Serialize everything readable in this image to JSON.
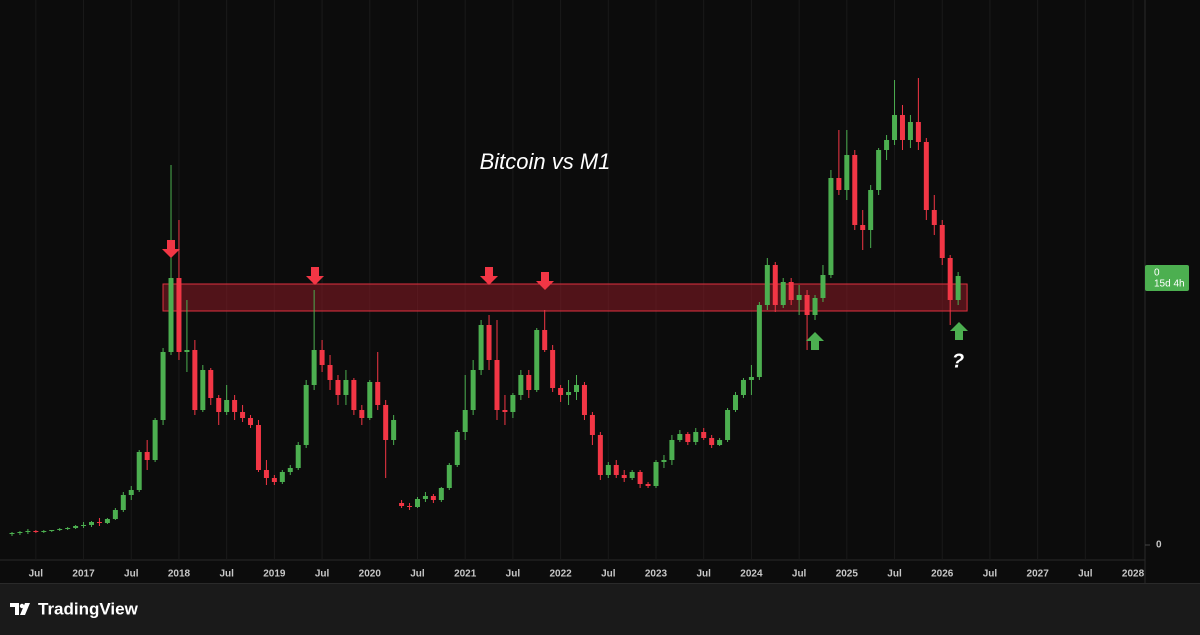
{
  "chart_data": {
    "type": "candlestick",
    "title": "Bitcoin vs M1",
    "x": [
      "2016-04",
      "2016-05",
      "2016-06",
      "2016-07",
      "2016-08",
      "2016-09",
      "2016-10",
      "2016-11",
      "2016-12",
      "2017-01",
      "2017-02",
      "2017-03",
      "2017-04",
      "2017-05",
      "2017-06",
      "2017-07",
      "2017-08",
      "2017-09",
      "2017-10",
      "2017-11",
      "2017-12",
      "2018-01",
      "2018-02",
      "2018-03",
      "2018-04",
      "2018-05",
      "2018-06",
      "2018-07",
      "2018-08",
      "2018-09",
      "2018-10",
      "2018-11",
      "2018-12",
      "2019-01",
      "2019-02",
      "2019-03",
      "2019-04",
      "2019-05",
      "2019-06",
      "2019-07",
      "2019-08",
      "2019-09",
      "2019-10",
      "2019-11",
      "2019-12",
      "2020-01",
      "2020-02",
      "2020-03",
      "2020-04",
      "2020-05",
      "2020-06",
      "2020-07",
      "2020-08",
      "2020-09",
      "2020-10",
      "2020-11",
      "2020-12",
      "2021-01",
      "2021-02",
      "2021-03",
      "2021-04",
      "2021-05",
      "2021-06",
      "2021-07",
      "2021-08",
      "2021-09",
      "2021-10",
      "2021-11",
      "2021-12",
      "2022-01",
      "2022-02",
      "2022-03",
      "2022-04",
      "2022-05",
      "2022-06",
      "2022-07",
      "2022-08",
      "2022-09",
      "2022-10",
      "2022-11",
      "2022-12",
      "2023-01",
      "2023-02",
      "2023-03",
      "2023-04",
      "2023-05",
      "2023-06",
      "2023-07",
      "2023-08",
      "2023-09",
      "2023-10",
      "2023-11",
      "2023-12",
      "2024-01",
      "2024-02",
      "2024-03",
      "2024-04",
      "2024-05",
      "2024-06",
      "2024-07",
      "2024-08",
      "2024-09",
      "2024-10",
      "2024-11",
      "2024-12",
      "2025-01",
      "2025-02",
      "2025-03",
      "2025-04",
      "2025-05",
      "2025-06",
      "2025-07",
      "2025-08",
      "2025-09",
      "2025-10",
      "2025-11",
      "2025-12",
      "2026-01",
      "2026-02",
      "2026-03"
    ],
    "open": [
      11,
      12,
      13,
      14,
      13,
      14,
      15,
      16,
      17,
      19,
      20,
      23,
      22,
      26,
      35,
      50,
      55,
      93,
      85,
      125,
      193,
      267,
      193,
      195,
      135,
      175,
      147,
      133,
      145,
      133,
      127,
      120,
      75,
      67,
      63,
      73,
      77,
      100,
      160,
      195,
      180,
      165,
      150,
      165,
      135,
      127,
      163,
      140,
      105,
      42,
      39,
      38,
      46,
      49,
      45,
      57,
      80,
      113,
      135,
      175,
      220,
      185,
      135,
      133,
      150,
      170,
      155,
      215,
      195,
      157,
      150,
      153,
      160,
      130,
      110,
      70,
      80,
      70,
      67,
      73,
      61,
      59,
      83,
      85,
      105,
      111,
      103,
      113,
      107,
      100,
      105,
      135,
      150,
      165,
      168,
      240,
      280,
      240,
      263,
      245,
      250,
      230,
      247,
      270,
      367,
      355,
      390,
      320,
      315,
      355,
      395,
      405,
      430,
      405,
      423,
      403,
      335,
      320,
      287,
      245
    ],
    "close": [
      12,
      13,
      14,
      13,
      14,
      15,
      16,
      17,
      19,
      20,
      23,
      22,
      26,
      35,
      50,
      55,
      93,
      85,
      125,
      193,
      267,
      193,
      195,
      135,
      175,
      147,
      133,
      145,
      133,
      127,
      120,
      75,
      67,
      63,
      73,
      77,
      100,
      160,
      195,
      180,
      165,
      150,
      165,
      135,
      127,
      163,
      140,
      105,
      125,
      39,
      38,
      46,
      49,
      45,
      57,
      80,
      113,
      135,
      175,
      220,
      185,
      135,
      133,
      150,
      170,
      155,
      215,
      195,
      157,
      150,
      153,
      160,
      130,
      110,
      70,
      80,
      70,
      67,
      73,
      61,
      59,
      83,
      85,
      105,
      111,
      103,
      113,
      107,
      100,
      105,
      135,
      150,
      165,
      168,
      240,
      280,
      240,
      263,
      245,
      250,
      230,
      247,
      270,
      367,
      355,
      390,
      320,
      315,
      355,
      395,
      405,
      430,
      405,
      423,
      403,
      335,
      320,
      287,
      245,
      269
    ],
    "high": [
      13,
      14,
      16,
      15,
      15,
      15,
      17,
      18,
      20,
      23,
      24,
      27,
      27,
      37,
      53,
      59,
      95,
      105,
      127,
      197,
      380,
      325,
      245,
      205,
      180,
      177,
      150,
      160,
      150,
      140,
      130,
      125,
      85,
      70,
      75,
      80,
      103,
      165,
      255,
      205,
      190,
      170,
      175,
      167,
      140,
      165,
      193,
      145,
      130,
      45,
      42,
      48,
      53,
      51,
      58,
      82,
      115,
      170,
      185,
      225,
      230,
      225,
      150,
      152,
      175,
      175,
      217,
      235,
      200,
      160,
      165,
      170,
      163,
      133,
      113,
      83,
      85,
      75,
      75,
      75,
      63,
      85,
      90,
      110,
      115,
      113,
      117,
      117,
      110,
      107,
      137,
      153,
      167,
      180,
      243,
      287,
      283,
      267,
      267,
      260,
      255,
      250,
      280,
      375,
      415,
      415,
      395,
      335,
      360,
      397,
      410,
      465,
      440,
      430,
      467,
      407,
      350,
      325,
      290,
      273
    ],
    "low": [
      9,
      10,
      11,
      12,
      12,
      13,
      14,
      15,
      16,
      17,
      18,
      19,
      21,
      25,
      33,
      45,
      53,
      75,
      83,
      120,
      190,
      185,
      173,
      130,
      133,
      140,
      120,
      130,
      125,
      123,
      117,
      73,
      60,
      60,
      61,
      70,
      75,
      97,
      155,
      173,
      155,
      140,
      140,
      130,
      120,
      125,
      135,
      67,
      100,
      37,
      35,
      37,
      43,
      42,
      43,
      55,
      78,
      105,
      130,
      170,
      175,
      125,
      120,
      127,
      145,
      147,
      153,
      193,
      153,
      143,
      140,
      145,
      125,
      100,
      65,
      67,
      67,
      63,
      65,
      57,
      57,
      57,
      77,
      80,
      103,
      100,
      100,
      105,
      97,
      99,
      103,
      133,
      147,
      150,
      165,
      235,
      233,
      237,
      240,
      230,
      195,
      225,
      243,
      267,
      350,
      345,
      315,
      295,
      297,
      350,
      385,
      400,
      395,
      397,
      395,
      325,
      310,
      280,
      220,
      240
    ],
    "up_color": "#4caf50",
    "down_color": "#f23645",
    "xlim": [
      "2016-04",
      "2028-02"
    ],
    "ylim": [
      -15,
      545
    ],
    "xticks": [
      {
        "value": "2016-07",
        "label": "Jul"
      },
      {
        "value": "2017-01",
        "label": "2017"
      },
      {
        "value": "2017-07",
        "label": "Jul"
      },
      {
        "value": "2018-01",
        "label": "2018"
      },
      {
        "value": "2018-07",
        "label": "Jul"
      },
      {
        "value": "2019-01",
        "label": "2019"
      },
      {
        "value": "2019-07",
        "label": "Jul"
      },
      {
        "value": "2020-01",
        "label": "2020"
      },
      {
        "value": "2020-07",
        "label": "Jul"
      },
      {
        "value": "2021-01",
        "label": "2021"
      },
      {
        "value": "2021-07",
        "label": "Jul"
      },
      {
        "value": "2022-01",
        "label": "2022"
      },
      {
        "value": "2022-07",
        "label": "Jul"
      },
      {
        "value": "2023-01",
        "label": "2023"
      },
      {
        "value": "2023-07",
        "label": "Jul"
      },
      {
        "value": "2024-01",
        "label": "2024"
      },
      {
        "value": "2024-07",
        "label": "Jul"
      },
      {
        "value": "2025-01",
        "label": "2025"
      },
      {
        "value": "2025-07",
        "label": "Jul"
      },
      {
        "value": "2026-01",
        "label": "2026"
      },
      {
        "value": "2026-07",
        "label": "Jul"
      },
      {
        "value": "2027-01",
        "label": "2027"
      },
      {
        "value": "2027-07",
        "label": "Jul"
      },
      {
        "value": "2028-01",
        "label": "2028"
      }
    ],
    "yticks": [
      0
    ],
    "grid": true,
    "zone": [
      234,
      261
    ],
    "zone_color": "#8b1a24",
    "price_label": {
      "value": 0,
      "countdown": "15d 4h"
    },
    "annotation": "?",
    "brand": "TradingView"
  }
}
